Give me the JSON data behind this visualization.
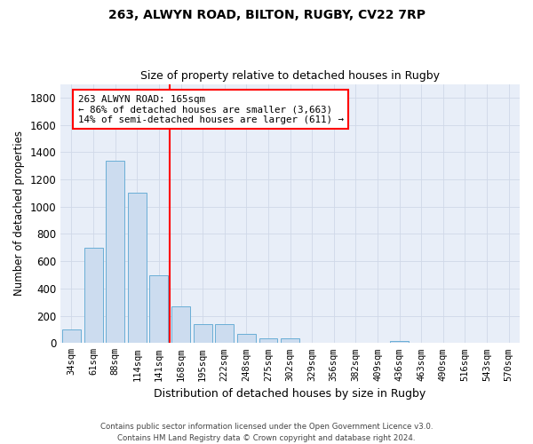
{
  "title1": "263, ALWYN ROAD, BILTON, RUGBY, CV22 7RP",
  "title2": "Size of property relative to detached houses in Rugby",
  "xlabel": "Distribution of detached houses by size in Rugby",
  "ylabel": "Number of detached properties",
  "categories": [
    "34sqm",
    "61sqm",
    "88sqm",
    "114sqm",
    "141sqm",
    "168sqm",
    "195sqm",
    "222sqm",
    "248sqm",
    "275sqm",
    "302sqm",
    "329sqm",
    "356sqm",
    "382sqm",
    "409sqm",
    "436sqm",
    "463sqm",
    "490sqm",
    "516sqm",
    "543sqm",
    "570sqm"
  ],
  "values": [
    100,
    700,
    1340,
    1100,
    495,
    270,
    140,
    140,
    70,
    35,
    35,
    0,
    0,
    0,
    0,
    15,
    0,
    0,
    0,
    0,
    0
  ],
  "bar_color": "#ccdcef",
  "bar_edge_color": "#6aaed6",
  "ylim": [
    0,
    1900
  ],
  "yticks": [
    0,
    200,
    400,
    600,
    800,
    1000,
    1200,
    1400,
    1600,
    1800
  ],
  "vline_index": 4.5,
  "annotation_line1": "263 ALWYN ROAD: 165sqm",
  "annotation_line2": "← 86% of detached houses are smaller (3,663)",
  "annotation_line3": "14% of semi-detached houses are larger (611) →",
  "footer1": "Contains HM Land Registry data © Crown copyright and database right 2024.",
  "footer2": "Contains public sector information licensed under the Open Government Licence v3.0.",
  "grid_color": "#d0d8e8",
  "background_color": "#e8eef8",
  "title1_fontsize": 10,
  "title2_fontsize": 9
}
